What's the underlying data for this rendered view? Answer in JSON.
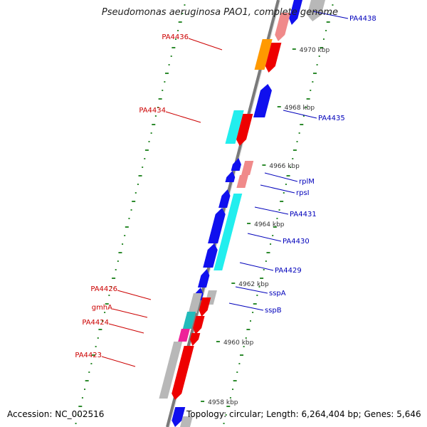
{
  "title": "Pseudomonas aeruginosa PAO1, complete genome",
  "accession": "Accession: NC_002516",
  "summary": "Topology: circular; Length: 6,264,404 bp; Genes: 5,646",
  "colors": {
    "axis": "#7a7a7a",
    "tick": "#2e8b2e",
    "label_forward": "#cc0000",
    "label_reverse": "#0000bb",
    "red": "#ee0000",
    "blue": "#1010ee",
    "cyan": "#22eeee",
    "orange": "#ff9900",
    "salmon": "#f08a8a",
    "gray": "#b8b8b8",
    "teal": "#22bbbb",
    "magenta": "#ee2299"
  },
  "scale_labels": [
    "4958 kbp",
    "4960 kbp",
    "4962 kbp",
    "4964 kbp",
    "4966 kbp",
    "4968 kbp",
    "4970 kbp"
  ],
  "gene_labels": {
    "left": [
      "PA4436",
      "PA4434",
      "PA4426",
      "gmhA",
      "PA4424",
      "PA4423"
    ],
    "right": [
      "PA4438",
      "PA4435",
      "rplM",
      "rpsI",
      "PA4431",
      "PA4430",
      "PA4429",
      "sspA",
      "sspB"
    ]
  }
}
